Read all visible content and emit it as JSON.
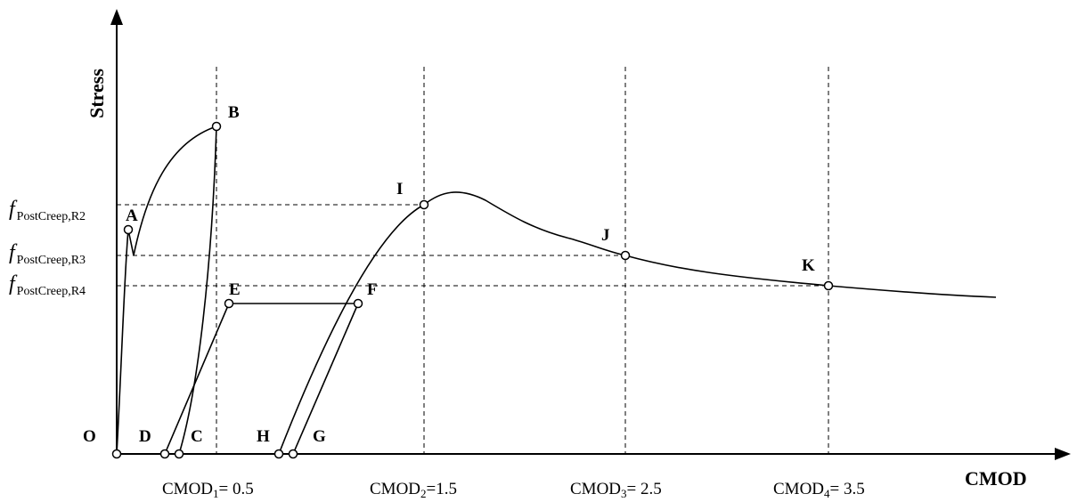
{
  "axes": {
    "y_title": "Stress",
    "x_title": "CMOD"
  },
  "points": {
    "O": "O",
    "A": "A",
    "B": "B",
    "C": "C",
    "D": "D",
    "E": "E",
    "F": "F",
    "G": "G",
    "H": "H",
    "I": "I",
    "J": "J",
    "K": "K"
  },
  "stress_levels": {
    "r2": {
      "f": "f",
      "sub": "PostCreep,R2"
    },
    "r3": {
      "f": "f",
      "sub": "PostCreep,R3"
    },
    "r4": {
      "f": "f",
      "sub": "PostCreep,R4"
    }
  },
  "cmod_ticks": [
    {
      "base": "CMOD",
      "sub": "1",
      "rest": "= 0.5"
    },
    {
      "base": "CMOD",
      "sub": "2",
      "rest": "=1.5"
    },
    {
      "base": "CMOD",
      "sub": "3",
      "rest": "= 2.5"
    },
    {
      "base": "CMOD",
      "sub": "4",
      "rest": "= 3.5"
    }
  ]
}
